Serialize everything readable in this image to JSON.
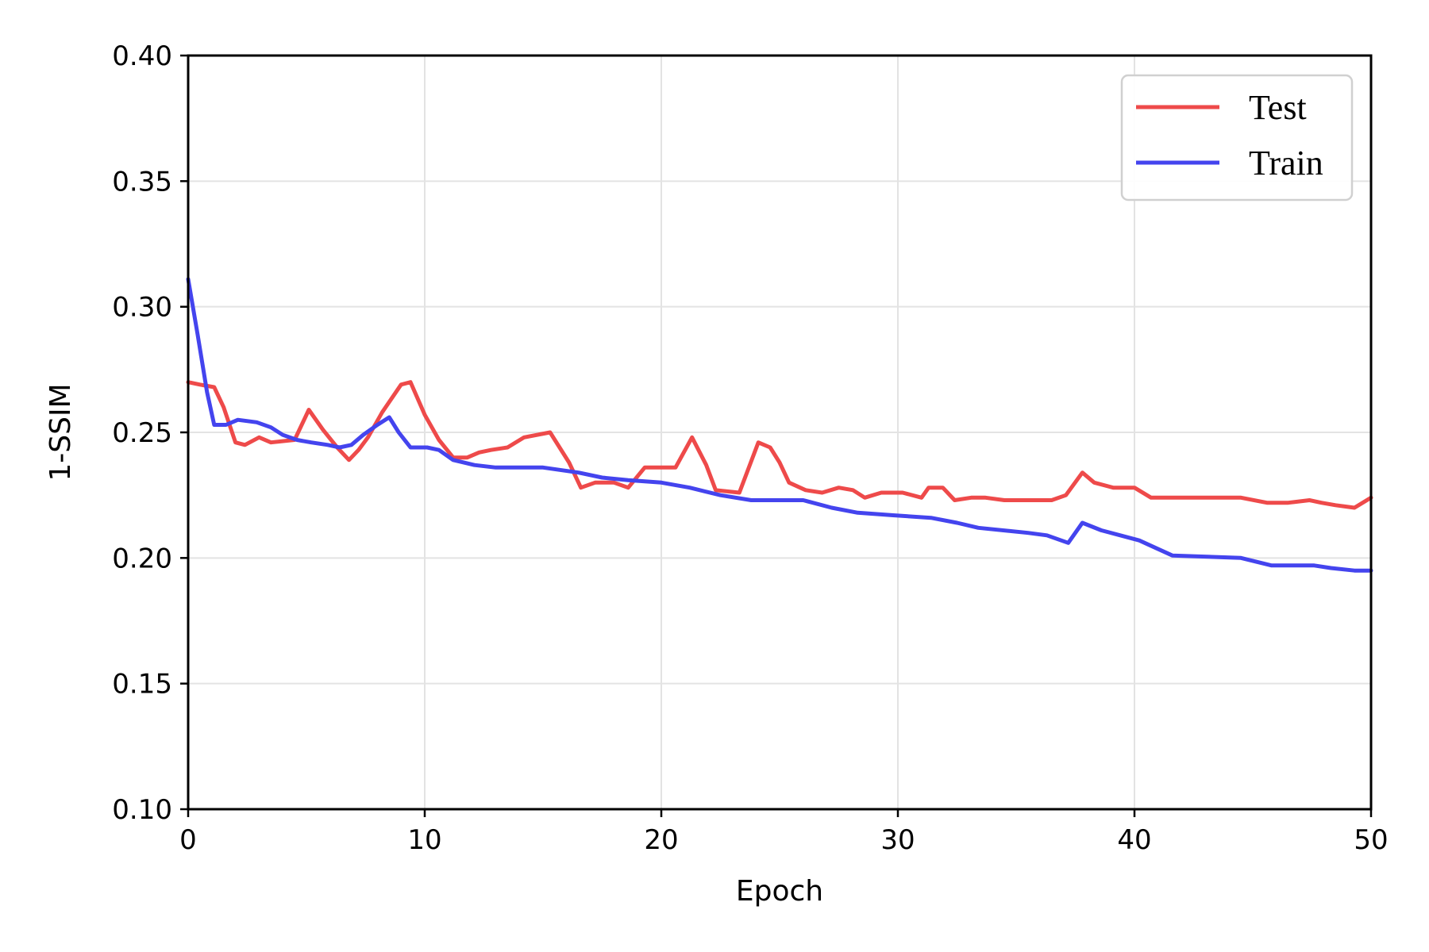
{
  "chart_data": {
    "type": "line",
    "title": "",
    "xlabel": "Epoch",
    "ylabel": "1-SSIM",
    "xlim": [
      0,
      50
    ],
    "ylim": [
      0.1,
      0.4
    ],
    "xticks": [
      "0",
      "10",
      "20",
      "30",
      "40",
      "50"
    ],
    "yticks": [
      "0.10",
      "0.15",
      "0.20",
      "0.25",
      "0.30",
      "0.35",
      "0.40"
    ],
    "xtick_values": [
      0,
      10,
      20,
      30,
      40,
      50
    ],
    "ytick_values": [
      0.1,
      0.15,
      0.2,
      0.25,
      0.3,
      0.35,
      0.4
    ],
    "grid": true,
    "legend_position": "top-right",
    "series": [
      {
        "name": "Test",
        "color": "#ee4a4a",
        "x": [
          0,
          0.5,
          1.1,
          1.5,
          2.0,
          2.4,
          3.0,
          3.5,
          4.5,
          5.1,
          5.7,
          6.3,
          6.8,
          7.2,
          7.6,
          8.2,
          9.0,
          9.4,
          10.0,
          10.6,
          11.2,
          11.8,
          12.3,
          12.8,
          13.5,
          14.2,
          15.3,
          16.1,
          16.6,
          17.2,
          18.0,
          18.6,
          19.3,
          20.6,
          21.3,
          21.9,
          22.3,
          23.3,
          24.1,
          24.6,
          25.0,
          25.4,
          26.1,
          26.8,
          27.5,
          28.1,
          28.6,
          29.3,
          30.2,
          31.0,
          31.3,
          31.9,
          32.4,
          33.1,
          33.7,
          34.5,
          36.5,
          37.1,
          37.8,
          38.3,
          39.1,
          40.0,
          40.7,
          44.5,
          45.6,
          46.5,
          47.4,
          47.9,
          48.5,
          49.3,
          50.0
        ],
        "values": [
          0.27,
          0.269,
          0.268,
          0.26,
          0.246,
          0.245,
          0.248,
          0.246,
          0.247,
          0.259,
          0.251,
          0.244,
          0.239,
          0.243,
          0.248,
          0.258,
          0.269,
          0.27,
          0.257,
          0.247,
          0.24,
          0.24,
          0.242,
          0.243,
          0.244,
          0.248,
          0.25,
          0.238,
          0.228,
          0.23,
          0.23,
          0.228,
          0.236,
          0.236,
          0.248,
          0.237,
          0.227,
          0.226,
          0.246,
          0.244,
          0.238,
          0.23,
          0.227,
          0.226,
          0.228,
          0.227,
          0.224,
          0.226,
          0.226,
          0.224,
          0.228,
          0.228,
          0.223,
          0.224,
          0.224,
          0.223,
          0.223,
          0.225,
          0.234,
          0.23,
          0.228,
          0.228,
          0.224,
          0.224,
          0.222,
          0.222,
          0.223,
          0.222,
          0.221,
          0.22,
          0.224
        ]
      },
      {
        "name": "Train",
        "color": "#4444ee",
        "x": [
          0,
          0.4,
          0.8,
          1.1,
          1.6,
          2.1,
          2.9,
          3.5,
          4.0,
          4.6,
          5.2,
          5.9,
          6.4,
          6.9,
          7.4,
          8.0,
          8.5,
          8.9,
          9.4,
          10.1,
          10.6,
          11.2,
          12.1,
          13.0,
          15.0,
          16.5,
          17.5,
          18.6,
          20.0,
          21.2,
          22.5,
          23.8,
          24.5,
          26.0,
          27.2,
          28.3,
          29.8,
          31.4,
          32.5,
          33.4,
          35.5,
          36.3,
          37.2,
          37.8,
          38.6,
          39.4,
          40.2,
          40.9,
          41.6,
          44.5,
          45.8,
          47.6,
          48.3,
          49.3,
          50.0
        ],
        "values": [
          0.311,
          0.289,
          0.266,
          0.253,
          0.253,
          0.255,
          0.254,
          0.252,
          0.249,
          0.247,
          0.246,
          0.245,
          0.244,
          0.245,
          0.249,
          0.253,
          0.256,
          0.25,
          0.244,
          0.244,
          0.243,
          0.239,
          0.237,
          0.236,
          0.236,
          0.234,
          0.232,
          0.231,
          0.23,
          0.228,
          0.225,
          0.223,
          0.223,
          0.223,
          0.22,
          0.218,
          0.217,
          0.216,
          0.214,
          0.212,
          0.21,
          0.209,
          0.206,
          0.214,
          0.211,
          0.209,
          0.207,
          0.204,
          0.201,
          0.2,
          0.197,
          0.197,
          0.196,
          0.195,
          0.195
        ]
      }
    ]
  }
}
